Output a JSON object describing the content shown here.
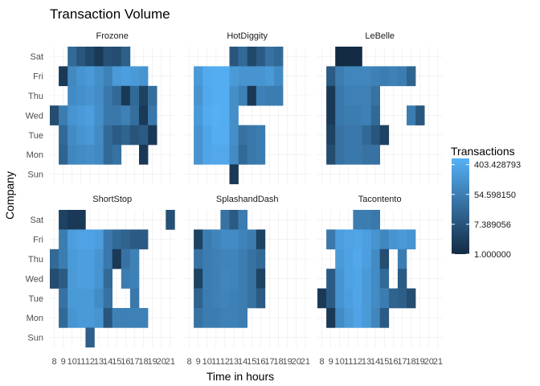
{
  "chart_data": {
    "type": "heatmap",
    "title": "Transaction Volume",
    "xlabel": "Time in hours",
    "ylabel": "Company",
    "x_hours": [
      8,
      9,
      10,
      11,
      12,
      13,
      14,
      15,
      16,
      17,
      18,
      19,
      20,
      21
    ],
    "x_tick_labels": [
      "8",
      "9",
      "10",
      "11",
      "12",
      "13",
      "14",
      "15",
      "16",
      "17",
      "18",
      "19",
      "20",
      "21"
    ],
    "y_days": [
      "Sat",
      "Fri",
      "Thu",
      "Wed",
      "Tue",
      "Mon",
      "Sun"
    ],
    "color_scale": "log",
    "legend": {
      "title": "Transactions",
      "position": "right",
      "breaks": [
        403.428793,
        54.59815,
        7.389056,
        1.0
      ],
      "break_labels": [
        "403.428793",
        "54.598150",
        "7.389056",
        "1.000000"
      ],
      "low_color": "#132B43",
      "high_color": "#56B1F7",
      "min": 1,
      "max": 610
    },
    "facets": [
      {
        "name": "Frozone",
        "rows": [
          [
            null,
            null,
            20,
            8,
            4,
            2,
            6,
            5,
            12,
            null,
            null,
            null,
            null,
            null
          ],
          [
            null,
            2,
            90,
            150,
            200,
            120,
            60,
            200,
            250,
            200,
            150,
            null,
            null,
            null
          ],
          [
            null,
            null,
            100,
            120,
            150,
            110,
            40,
            20,
            2,
            20,
            3,
            25,
            null,
            null
          ],
          [
            5,
            50,
            150,
            200,
            250,
            120,
            40,
            40,
            60,
            25,
            2,
            40,
            null,
            null
          ],
          [
            null,
            20,
            100,
            150,
            200,
            100,
            20,
            10,
            15,
            7,
            10,
            2,
            null,
            null
          ],
          [
            null,
            15,
            80,
            100,
            120,
            90,
            20,
            30,
            null,
            null,
            2,
            null,
            null,
            null
          ],
          [
            null,
            null,
            null,
            null,
            null,
            null,
            null,
            null,
            null,
            null,
            null,
            null,
            null,
            null
          ]
        ]
      },
      {
        "name": "HotDiggity",
        "rows": [
          [
            null,
            null,
            null,
            null,
            null,
            8,
            20,
            4,
            10,
            30,
            20,
            null,
            null,
            null
          ],
          [
            null,
            200,
            450,
            500,
            500,
            200,
            150,
            150,
            150,
            200,
            100,
            null,
            null,
            null
          ],
          [
            null,
            150,
            400,
            500,
            500,
            120,
            60,
            2,
            60,
            50,
            50,
            null,
            null,
            null
          ],
          [
            null,
            200,
            450,
            550,
            500,
            120,
            null,
            null,
            null,
            null,
            null,
            null,
            null,
            null
          ],
          [
            null,
            150,
            350,
            500,
            500,
            120,
            30,
            40,
            50,
            null,
            null,
            null,
            null,
            null
          ],
          [
            null,
            150,
            350,
            400,
            400,
            100,
            20,
            40,
            50,
            null,
            null,
            null,
            null,
            null
          ],
          [
            null,
            null,
            null,
            null,
            null,
            2,
            null,
            null,
            null,
            null,
            null,
            null,
            null,
            null
          ]
        ]
      },
      {
        "name": "LeBelle",
        "rows": [
          [
            null,
            null,
            1,
            1,
            1,
            null,
            null,
            null,
            null,
            null,
            null,
            null,
            null,
            null
          ],
          [
            null,
            10,
            50,
            80,
            80,
            80,
            60,
            50,
            60,
            50,
            15,
            null,
            null,
            null
          ],
          [
            null,
            2,
            40,
            60,
            60,
            60,
            30,
            null,
            null,
            null,
            null,
            null,
            null,
            null
          ],
          [
            null,
            2,
            40,
            50,
            50,
            60,
            20,
            null,
            null,
            null,
            50,
            8,
            null,
            null
          ],
          [
            null,
            3,
            30,
            40,
            40,
            20,
            8,
            3,
            null,
            null,
            null,
            null,
            null,
            null
          ],
          [
            null,
            5,
            30,
            40,
            40,
            30,
            30,
            null,
            null,
            null,
            null,
            null,
            null,
            null
          ],
          [
            null,
            null,
            null,
            null,
            null,
            null,
            null,
            null,
            null,
            null,
            null,
            null,
            null,
            null
          ]
        ]
      },
      {
        "name": "ShortStop",
        "rows": [
          [
            null,
            3,
            2,
            2,
            null,
            null,
            null,
            null,
            null,
            null,
            null,
            null,
            null,
            6
          ],
          [
            null,
            50,
            250,
            300,
            300,
            250,
            40,
            20,
            15,
            10,
            10,
            null,
            null,
            null
          ],
          [
            20,
            50,
            200,
            250,
            250,
            150,
            40,
            2,
            30,
            60,
            null,
            null,
            null,
            null
          ],
          [
            5,
            10,
            200,
            250,
            250,
            150,
            20,
            null,
            50,
            60,
            null,
            null,
            null,
            null
          ],
          [
            null,
            30,
            200,
            200,
            200,
            100,
            30,
            null,
            null,
            40,
            null,
            null,
            null,
            null
          ],
          [
            null,
            20,
            150,
            200,
            200,
            150,
            8,
            60,
            60,
            60,
            60,
            null,
            null,
            null
          ],
          [
            null,
            null,
            null,
            null,
            12,
            null,
            null,
            null,
            null,
            null,
            null,
            null,
            null,
            null
          ]
        ]
      },
      {
        "name": "SplashandDash",
        "rows": [
          [
            null,
            null,
            null,
            null,
            30,
            10,
            50,
            null,
            null,
            null,
            null,
            null,
            null,
            null
          ],
          [
            null,
            3,
            50,
            70,
            100,
            100,
            70,
            50,
            3,
            null,
            null,
            null,
            null,
            null
          ],
          [
            null,
            30,
            50,
            60,
            70,
            70,
            50,
            30,
            20,
            null,
            null,
            null,
            null,
            null
          ],
          [
            null,
            3,
            50,
            60,
            80,
            70,
            50,
            30,
            3,
            null,
            null,
            null,
            null,
            null
          ],
          [
            null,
            15,
            50,
            60,
            70,
            60,
            50,
            30,
            10,
            null,
            null,
            null,
            null,
            null
          ],
          [
            null,
            30,
            50,
            50,
            60,
            60,
            50,
            null,
            null,
            null,
            null,
            null,
            null,
            null
          ],
          [
            null,
            null,
            null,
            null,
            null,
            null,
            null,
            null,
            null,
            null,
            null,
            null,
            null,
            null
          ]
        ]
      },
      {
        "name": "Tacontento",
        "rows": [
          [
            null,
            null,
            null,
            null,
            50,
            50,
            40,
            null,
            null,
            null,
            null,
            null,
            null,
            null
          ],
          [
            null,
            40,
            250,
            300,
            350,
            250,
            150,
            80,
            150,
            200,
            150,
            null,
            null,
            null
          ],
          [
            null,
            null,
            200,
            300,
            400,
            250,
            100,
            5,
            null,
            50,
            null,
            null,
            null,
            null
          ],
          [
            null,
            10,
            150,
            300,
            350,
            200,
            100,
            20,
            null,
            10,
            null,
            null,
            null,
            null
          ],
          [
            2,
            10,
            150,
            250,
            350,
            200,
            100,
            50,
            15,
            12,
            5,
            null,
            null,
            null
          ],
          [
            null,
            2,
            100,
            200,
            300,
            200,
            80,
            10,
            null,
            null,
            null,
            null,
            null,
            null
          ],
          [
            null,
            null,
            null,
            null,
            null,
            null,
            null,
            null,
            null,
            null,
            null,
            null,
            null,
            null
          ]
        ]
      }
    ]
  }
}
